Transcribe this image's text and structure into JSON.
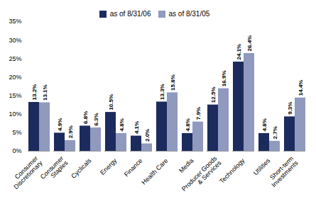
{
  "chart_data": {
    "type": "bar",
    "categories": [
      "Consumer\nDiscretionary",
      "Consumer\nStaples",
      "Cyclicals",
      "Energy",
      "Finance",
      "Health Care",
      "Media",
      "Producer Goods\n& Services",
      "Technology",
      "Utilities",
      "Short-term\nInvestments"
    ],
    "series": [
      {
        "name": "as of 8/31/06",
        "color": "#1c2b5e",
        "values": [
          13.2,
          4.9,
          6.8,
          10.5,
          4.1,
          13.3,
          4.8,
          12.5,
          24.1,
          4.8,
          9.3
        ],
        "value_labels": [
          "13.2%",
          "4.9%",
          "6.8%",
          "10.5%",
          "4.1%",
          "13.3%",
          "4.8%",
          "12.5%",
          "24.1%",
          "4.8%",
          "9.3%"
        ]
      },
      {
        "name": "as of 8/31/05",
        "color": "#9099be",
        "values": [
          13.1,
          2.9,
          6.3,
          4.8,
          2.0,
          15.8,
          7.9,
          16.9,
          26.4,
          2.7,
          14.4
        ],
        "value_labels": [
          "13.1%",
          "2.9%",
          "6.3%",
          "4.8%",
          "2.0%",
          "15.8%",
          "7.9%",
          "16.9%",
          "26.4%",
          "2.7%",
          "14.4%"
        ]
      }
    ],
    "ylim": [
      0,
      35
    ],
    "yticks": [
      {
        "value": 0,
        "label": "0%"
      },
      {
        "value": 5,
        "label": "5%"
      },
      {
        "value": 10,
        "label": "10%"
      },
      {
        "value": 15,
        "label": "15%"
      },
      {
        "value": 20,
        "label": "20%"
      },
      {
        "value": 25,
        "label": "25%"
      },
      {
        "value": 30,
        "label": "30%"
      },
      {
        "value": 35,
        "label": "35%"
      }
    ],
    "grid": false,
    "data_labels": true,
    "legend": "top"
  }
}
